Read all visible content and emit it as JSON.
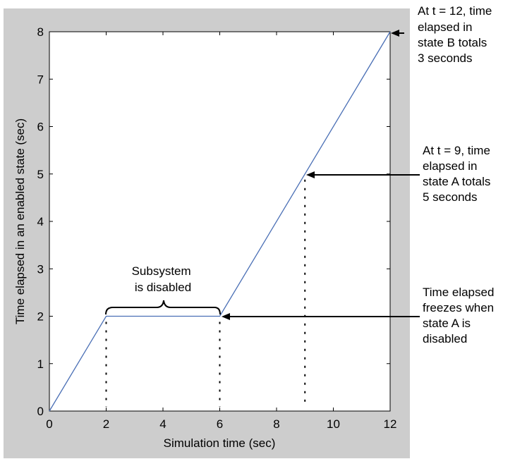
{
  "chart_data": {
    "type": "line",
    "title": "",
    "xlabel": "Simulation time (sec)",
    "ylabel": "Time elapsed in an enabled state (sec)",
    "xlim": [
      0,
      12
    ],
    "ylim": [
      0,
      8
    ],
    "xticks": [
      0,
      2,
      4,
      6,
      8,
      10,
      12
    ],
    "yticks": [
      0,
      1,
      2,
      3,
      4,
      5,
      6,
      7,
      8
    ],
    "grid": false,
    "series": [
      {
        "x": [
          0,
          2,
          6,
          12
        ],
        "y": [
          0,
          2,
          2,
          8
        ],
        "color": "#4a6fb5"
      }
    ],
    "annotations": [
      {
        "text_lines": [
          "At t = 12, time",
          "elapsed in",
          "state B totals",
          "3 seconds"
        ],
        "x": 12,
        "y": 8
      },
      {
        "text_lines": [
          "At t = 9, time",
          "elapsed in",
          "state A totals",
          "5 seconds"
        ],
        "x": 9,
        "y": 5
      },
      {
        "text_lines": [
          "Time elapsed",
          "freezes when",
          "state A is",
          "disabled"
        ],
        "x": 6,
        "y": 2
      }
    ],
    "brace_label_lines": [
      "Subsystem",
      "is disabled"
    ],
    "brace_range": [
      2,
      6
    ],
    "dotted_guides_x": [
      2,
      6,
      9
    ]
  },
  "colors": {
    "figure_background": "#cdcdcd",
    "plot_background": "#ffffff",
    "line": "#4a6fb5"
  }
}
